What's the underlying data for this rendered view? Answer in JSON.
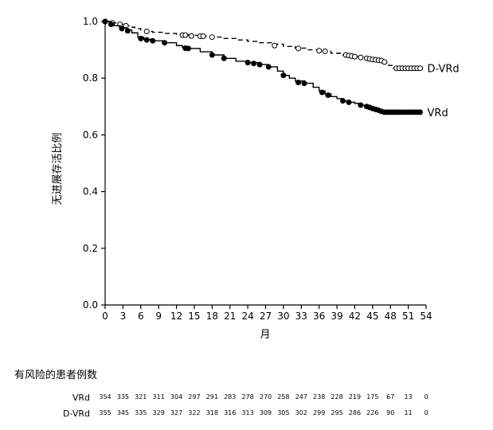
{
  "chart_data": {
    "type": "line",
    "ylabel": "无进展存活比例",
    "xlabel": "月",
    "xlim": [
      0,
      54
    ],
    "ylim": [
      0,
      1
    ],
    "x_ticks": [
      0,
      3,
      6,
      9,
      12,
      15,
      18,
      21,
      24,
      27,
      30,
      33,
      36,
      39,
      42,
      45,
      48,
      51,
      54
    ],
    "y_ticks": [
      "0.0",
      "0.2",
      "0.4",
      "0.6",
      "0.8",
      "1.0"
    ],
    "grid": false,
    "series": [
      {
        "name": "D-VRd",
        "style": "dashed",
        "marker": "open-circle",
        "points": [
          [
            0,
            1.0
          ],
          [
            1,
            0.995
          ],
          [
            2,
            0.99
          ],
          [
            3,
            0.985
          ],
          [
            4,
            0.98
          ],
          [
            5,
            0.975
          ],
          [
            6,
            0.97
          ],
          [
            7,
            0.965
          ],
          [
            8,
            0.962
          ],
          [
            10,
            0.958
          ],
          [
            12,
            0.954
          ],
          [
            14,
            0.951
          ],
          [
            16,
            0.948
          ],
          [
            18,
            0.945
          ],
          [
            20,
            0.94
          ],
          [
            22,
            0.935
          ],
          [
            24,
            0.93
          ],
          [
            26,
            0.925
          ],
          [
            28,
            0.92
          ],
          [
            30,
            0.912
          ],
          [
            32,
            0.906
          ],
          [
            34,
            0.9
          ],
          [
            36,
            0.895
          ],
          [
            38,
            0.888
          ],
          [
            40,
            0.882
          ],
          [
            42,
            0.876
          ],
          [
            44,
            0.87
          ],
          [
            45,
            0.866
          ],
          [
            46,
            0.862
          ],
          [
            47,
            0.855
          ],
          [
            47.7,
            0.845
          ],
          [
            48.3,
            0.835
          ],
          [
            53,
            0.835
          ]
        ],
        "censored": [
          [
            0,
            1.0
          ],
          [
            1.2,
            0.995
          ],
          [
            2.5,
            0.99
          ],
          [
            3.5,
            0.985
          ],
          [
            7,
            0.965
          ],
          [
            13,
            0.952
          ],
          [
            13.5,
            0.952
          ],
          [
            14.5,
            0.949
          ],
          [
            16,
            0.948
          ],
          [
            16.5,
            0.948
          ],
          [
            18,
            0.945
          ],
          [
            28.5,
            0.915
          ],
          [
            32.5,
            0.905
          ],
          [
            36,
            0.897
          ],
          [
            37,
            0.895
          ],
          [
            40.5,
            0.882
          ],
          [
            41,
            0.88
          ],
          [
            41.5,
            0.878
          ],
          [
            42,
            0.876
          ],
          [
            43,
            0.873
          ],
          [
            44,
            0.87
          ],
          [
            44.5,
            0.868
          ],
          [
            45,
            0.866
          ],
          [
            45.5,
            0.865
          ],
          [
            46,
            0.863
          ],
          [
            46.5,
            0.862
          ],
          [
            47,
            0.857
          ],
          [
            49,
            0.835
          ],
          [
            49.5,
            0.835
          ],
          [
            50,
            0.835
          ],
          [
            50.5,
            0.835
          ],
          [
            51,
            0.835
          ],
          [
            51.5,
            0.835
          ],
          [
            52,
            0.835
          ],
          [
            52.5,
            0.835
          ],
          [
            53,
            0.835
          ]
        ],
        "label_text": "D-VRd"
      },
      {
        "name": "VRd",
        "style": "solid",
        "marker": "filled-circle",
        "points": [
          [
            0,
            1.0
          ],
          [
            0.7,
            0.995
          ],
          [
            1.5,
            0.985
          ],
          [
            2.5,
            0.978
          ],
          [
            3.5,
            0.97
          ],
          [
            4.5,
            0.96
          ],
          [
            5.5,
            0.945
          ],
          [
            6.5,
            0.937
          ],
          [
            8,
            0.932
          ],
          [
            10,
            0.925
          ],
          [
            12,
            0.915
          ],
          [
            13,
            0.908
          ],
          [
            14,
            0.905
          ],
          [
            16,
            0.893
          ],
          [
            18,
            0.882
          ],
          [
            20,
            0.87
          ],
          [
            22,
            0.86
          ],
          [
            24,
            0.855
          ],
          [
            26,
            0.848
          ],
          [
            27.5,
            0.84
          ],
          [
            29,
            0.825
          ],
          [
            30,
            0.81
          ],
          [
            31,
            0.8
          ],
          [
            32,
            0.79
          ],
          [
            33.5,
            0.782
          ],
          [
            35,
            0.768
          ],
          [
            36,
            0.755
          ],
          [
            37,
            0.745
          ],
          [
            38,
            0.735
          ],
          [
            39,
            0.728
          ],
          [
            40,
            0.72
          ],
          [
            41,
            0.715
          ],
          [
            42,
            0.711
          ],
          [
            43,
            0.705
          ],
          [
            44,
            0.697
          ],
          [
            45,
            0.692
          ],
          [
            46,
            0.685
          ],
          [
            47,
            0.68
          ],
          [
            53,
            0.68
          ]
        ],
        "censored": [
          [
            0,
            1.0
          ],
          [
            1,
            0.99
          ],
          [
            2.8,
            0.975
          ],
          [
            3.8,
            0.967
          ],
          [
            6,
            0.94
          ],
          [
            7,
            0.935
          ],
          [
            8,
            0.932
          ],
          [
            10,
            0.925
          ],
          [
            13.5,
            0.906
          ],
          [
            14,
            0.905
          ],
          [
            18,
            0.882
          ],
          [
            20,
            0.87
          ],
          [
            24,
            0.855
          ],
          [
            25,
            0.852
          ],
          [
            26,
            0.848
          ],
          [
            27.5,
            0.84
          ],
          [
            30,
            0.81
          ],
          [
            32.5,
            0.785
          ],
          [
            33.5,
            0.782
          ],
          [
            36.5,
            0.75
          ],
          [
            37.5,
            0.74
          ],
          [
            40,
            0.72
          ],
          [
            41,
            0.715
          ],
          [
            43,
            0.705
          ],
          [
            44,
            0.7
          ],
          [
            44.5,
            0.697
          ],
          [
            45,
            0.693
          ],
          [
            45.5,
            0.69
          ],
          [
            46,
            0.687
          ],
          [
            46.5,
            0.683
          ],
          [
            47,
            0.68
          ],
          [
            47.5,
            0.68
          ],
          [
            48,
            0.68
          ],
          [
            48.5,
            0.68
          ],
          [
            49,
            0.68
          ],
          [
            49.5,
            0.68
          ],
          [
            50,
            0.68
          ],
          [
            50.5,
            0.68
          ],
          [
            51,
            0.68
          ],
          [
            51.5,
            0.68
          ],
          [
            52,
            0.68
          ],
          [
            52.5,
            0.68
          ],
          [
            53,
            0.68
          ]
        ],
        "label_text": "VRd"
      }
    ],
    "risk_table": {
      "title": "有风险的患者例数",
      "times": [
        0,
        3,
        6,
        9,
        12,
        15,
        18,
        21,
        24,
        27,
        30,
        33,
        36,
        39,
        42,
        45,
        48,
        51,
        54
      ],
      "rows": [
        {
          "label": "VRd",
          "values": [
            "354",
            "335",
            "321",
            "311",
            "304",
            "297",
            "291",
            "283",
            "278",
            "270",
            "258",
            "247",
            "238",
            "228",
            "219",
            "175",
            "67",
            "13",
            "0"
          ]
        },
        {
          "label": "D-VRd",
          "values": [
            "355",
            "345",
            "335",
            "329",
            "327",
            "322",
            "318",
            "316",
            "313",
            "309",
            "305",
            "302",
            "299",
            "295",
            "286",
            "226",
            "90",
            "11",
            "0"
          ]
        }
      ]
    }
  }
}
